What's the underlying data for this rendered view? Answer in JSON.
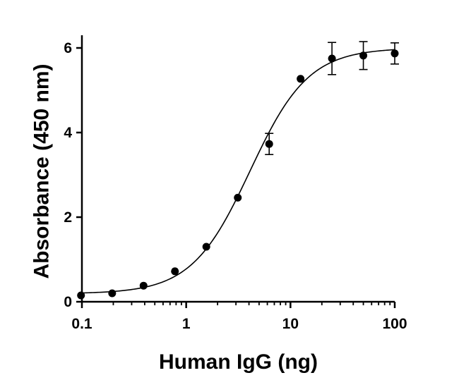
{
  "chart_data": {
    "type": "scatter",
    "title": "",
    "xlabel": "Human IgG (ng)",
    "ylabel": "Absorbance (450 nm)",
    "xscale": "log",
    "xlim": [
      0.1,
      100
    ],
    "ylim": [
      0,
      6.3
    ],
    "xticks": [
      0.1,
      1,
      10,
      100
    ],
    "xtick_labels": [
      "0.1",
      "1",
      "10",
      "100"
    ],
    "yticks": [
      0,
      2,
      4,
      6
    ],
    "ytick_labels": [
      "0",
      "2",
      "4",
      "6"
    ],
    "grid": false,
    "legend": "none",
    "series": [
      {
        "x": [
          0.098,
          0.195,
          0.39,
          0.78,
          1.56,
          3.125,
          6.25,
          12.5,
          25,
          50,
          100
        ],
        "y": [
          0.15,
          0.2,
          0.38,
          0.72,
          1.3,
          2.46,
          3.73,
          5.27,
          5.75,
          5.82,
          5.87
        ],
        "error": [
          0,
          0,
          0,
          0,
          0,
          0,
          0.25,
          0,
          0.38,
          0.33,
          0.25
        ]
      }
    ],
    "fit": {
      "model": "4PL",
      "bottom": 0.19,
      "top": 6.0,
      "ec50": 4.1,
      "hill": 1.55
    }
  }
}
